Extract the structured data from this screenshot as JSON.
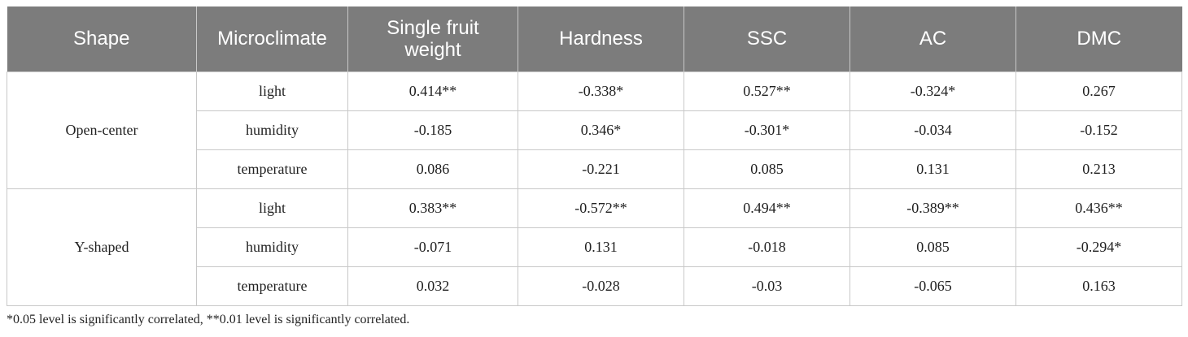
{
  "headers": [
    "Shape",
    "Microclimate",
    "Single fruit weight",
    "Hardness",
    "SSC",
    "AC",
    "DMC"
  ],
  "groups": [
    {
      "shape": "Open-center",
      "rows": [
        {
          "microclimate": "light",
          "values": [
            "0.414**",
            "-0.338*",
            "0.527**",
            "-0.324*",
            "0.267"
          ]
        },
        {
          "microclimate": "humidity",
          "values": [
            "-0.185",
            "0.346*",
            "-0.301*",
            "-0.034",
            "-0.152"
          ]
        },
        {
          "microclimate": "temperature",
          "values": [
            "0.086",
            "-0.221",
            "0.085",
            "0.131",
            "0.213"
          ]
        }
      ]
    },
    {
      "shape": "Y-shaped",
      "rows": [
        {
          "microclimate": "light",
          "values": [
            "0.383**",
            "-0.572**",
            "0.494**",
            "-0.389**",
            "0.436**"
          ]
        },
        {
          "microclimate": "humidity",
          "values": [
            "-0.071",
            "0.131",
            "-0.018",
            "0.085",
            "-0.294*"
          ]
        },
        {
          "microclimate": "temperature",
          "values": [
            "0.032",
            "-0.028",
            "-0.03",
            "-0.065",
            "0.163"
          ]
        }
      ]
    }
  ],
  "footnote": "*0.05 level is significantly correlated, **0.01 level is significantly correlated.",
  "colors": {
    "header_bg": "#7c7c7c",
    "header_text": "#ffffff",
    "border": "#c8c8c8"
  }
}
